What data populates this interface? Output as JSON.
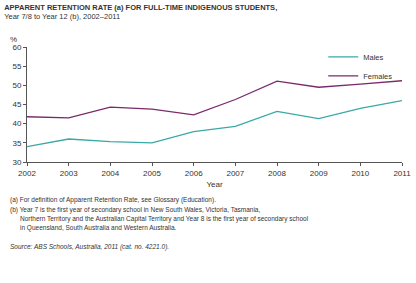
{
  "chart_data": {
    "type": "line",
    "title": "APPARENT RETENTION RATE (a) FOR FULL-TIME INDIGENOUS STUDENTS,",
    "subtitle": "Year 7/8 to Year 12 (b), 2002–2011",
    "x_label": "Year",
    "y_label": "%",
    "x": [
      2002,
      2003,
      2004,
      2005,
      2006,
      2007,
      2008,
      2009,
      2010,
      2011
    ],
    "series": [
      {
        "name": "Males",
        "color": "#3aa9a6",
        "values": [
          34.0,
          36.0,
          35.3,
          35.0,
          37.9,
          39.3,
          43.2,
          41.3,
          44.0,
          46.0
        ]
      },
      {
        "name": "Females",
        "color": "#7a2a6a",
        "values": [
          41.8,
          41.5,
          44.3,
          43.8,
          42.3,
          46.3,
          51.1,
          49.5,
          50.3,
          51.2
        ]
      }
    ],
    "xlim": [
      2002,
      2011
    ],
    "xticks": [
      2002,
      2003,
      2004,
      2005,
      2006,
      2007,
      2008,
      2009,
      2010,
      2011
    ],
    "ylim": [
      30,
      60
    ],
    "yticks": [
      30,
      35,
      40,
      45,
      50,
      55,
      60
    ],
    "grid": false,
    "legend": "top right",
    "annotations": [
      "(a) For definition of Apparent Retention Rate, see Glossary (Education).",
      "(b) Year 7 is the first year of secondary school in New South Wales, Victoria, Tasmania,",
      "Northern Territory and the Australian Capital Territory and Year 8 is the first year of secondary school",
      "in Queensland, South Australia and Western Australia.",
      "Source: ABS Schools, Australia, 2011 (cat. no. 4221.0)."
    ]
  }
}
